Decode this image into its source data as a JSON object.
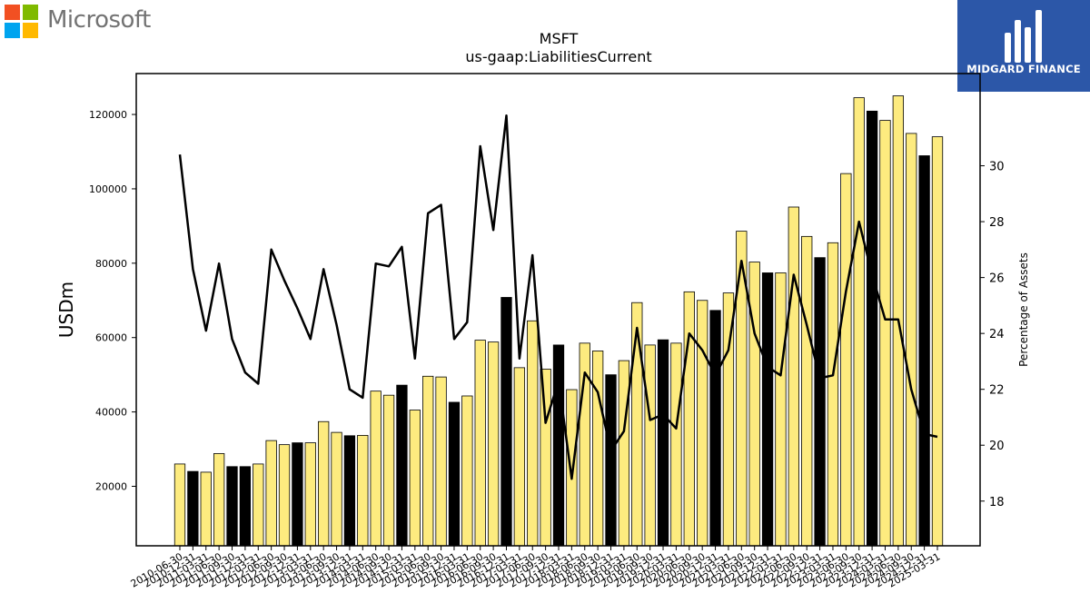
{
  "branding": {
    "left_logo_name": "Microsoft",
    "left_logo_colors": [
      "#f25022",
      "#7fba00",
      "#00a4ef",
      "#ffb900"
    ],
    "right_logo_name": "MIDGARD FINANCE",
    "right_logo_bg": "#2c57a8"
  },
  "chart_data": {
    "type": "bar",
    "title": "MSFT",
    "subtitle": "us-gaap:LiabilitiesCurrent",
    "ylabel": "USDm",
    "ylabel_right": "Percentage of Assets",
    "ylim": [
      4000,
      131000
    ],
    "ylim_right": [
      16.4,
      33.3
    ],
    "yticks": [
      20000,
      40000,
      60000,
      80000,
      100000,
      120000
    ],
    "yticks_right": [
      18,
      20,
      22,
      24,
      26,
      28,
      30
    ],
    "grid": false,
    "colors": {
      "bar": "#fdeb7f",
      "bar_annual": "#000000",
      "line": "#000000"
    },
    "categories": [
      "2010-06-30",
      "2010-12-31",
      "2011-03-31",
      "2011-06-30",
      "2011-09-30",
      "2011-12-31",
      "2012-03-31",
      "2012-06-30",
      "2012-09-30",
      "2012-12-31",
      "2013-03-31",
      "2013-06-30",
      "2013-09-30",
      "2013-12-31",
      "2014-03-31",
      "2014-06-30",
      "2014-09-30",
      "2014-12-31",
      "2015-03-31",
      "2015-06-30",
      "2015-09-30",
      "2015-12-31",
      "2016-03-31",
      "2016-06-30",
      "2016-09-30",
      "2016-12-31",
      "2017-03-31",
      "2017-06-30",
      "2017-09-30",
      "2017-12-31",
      "2018-03-31",
      "2018-06-30",
      "2018-09-30",
      "2018-12-31",
      "2019-03-31",
      "2019-06-30",
      "2019-09-30",
      "2019-12-31",
      "2020-03-31",
      "2020-06-30",
      "2020-09-30",
      "2020-12-31",
      "2021-03-31",
      "2021-06-30",
      "2021-09-30",
      "2021-12-31",
      "2022-03-31",
      "2022-06-30",
      "2022-09-30",
      "2022-12-31",
      "2023-03-31",
      "2023-06-30",
      "2023-09-30",
      "2023-12-31",
      "2024-03-31",
      "2024-06-30",
      "2024-09-30",
      "2024-12-31",
      "2025-03-31"
    ],
    "series": [
      {
        "name": "LiabilitiesCurrent",
        "axis": "left",
        "values": [
          26000,
          24000,
          23800,
          28800,
          25300,
          25300,
          26000,
          32300,
          31200,
          31700,
          31700,
          37400,
          34500,
          33600,
          33700,
          45600,
          44500,
          47200,
          40500,
          49600,
          49400,
          42600,
          44300,
          59300,
          58800,
          70800,
          51900,
          64500,
          51500,
          58000,
          46000,
          58500,
          56400,
          50000,
          53800,
          69400,
          58000,
          59400,
          58500,
          72300,
          70000,
          67300,
          72000,
          88600,
          80300,
          77400,
          77400,
          95100,
          87200,
          81500,
          85500,
          104100,
          124500,
          120900,
          118400,
          125000,
          114900,
          108900,
          114000
        ],
        "annual": [
          false,
          true,
          false,
          false,
          true,
          true,
          false,
          false,
          false,
          true,
          false,
          false,
          false,
          true,
          false,
          false,
          false,
          true,
          false,
          false,
          false,
          true,
          false,
          false,
          false,
          true,
          false,
          false,
          false,
          true,
          false,
          false,
          false,
          true,
          false,
          false,
          false,
          true,
          false,
          false,
          false,
          true,
          false,
          false,
          false,
          true,
          false,
          false,
          false,
          true,
          false,
          false,
          false,
          true,
          false,
          false,
          false,
          true,
          false
        ]
      },
      {
        "name": "Percentage of Assets",
        "axis": "right",
        "type": "line",
        "values": [
          30.4,
          26.3,
          24.1,
          26.5,
          23.8,
          22.6,
          22.2,
          27.0,
          25.9,
          24.9,
          23.8,
          26.3,
          24.3,
          22.0,
          21.7,
          26.5,
          26.4,
          27.1,
          23.1,
          28.3,
          28.6,
          23.8,
          24.4,
          30.7,
          27.7,
          31.8,
          23.1,
          26.8,
          20.8,
          22.3,
          18.8,
          22.6,
          21.9,
          19.8,
          20.5,
          24.2,
          20.9,
          21.1,
          20.6,
          24.0,
          23.4,
          22.5,
          23.4,
          26.6,
          24.0,
          22.8,
          22.5,
          26.1,
          24.3,
          22.4,
          22.5,
          25.5,
          28.0,
          26.1,
          24.5,
          24.5,
          22.0,
          20.4,
          20.3
        ]
      }
    ]
  }
}
